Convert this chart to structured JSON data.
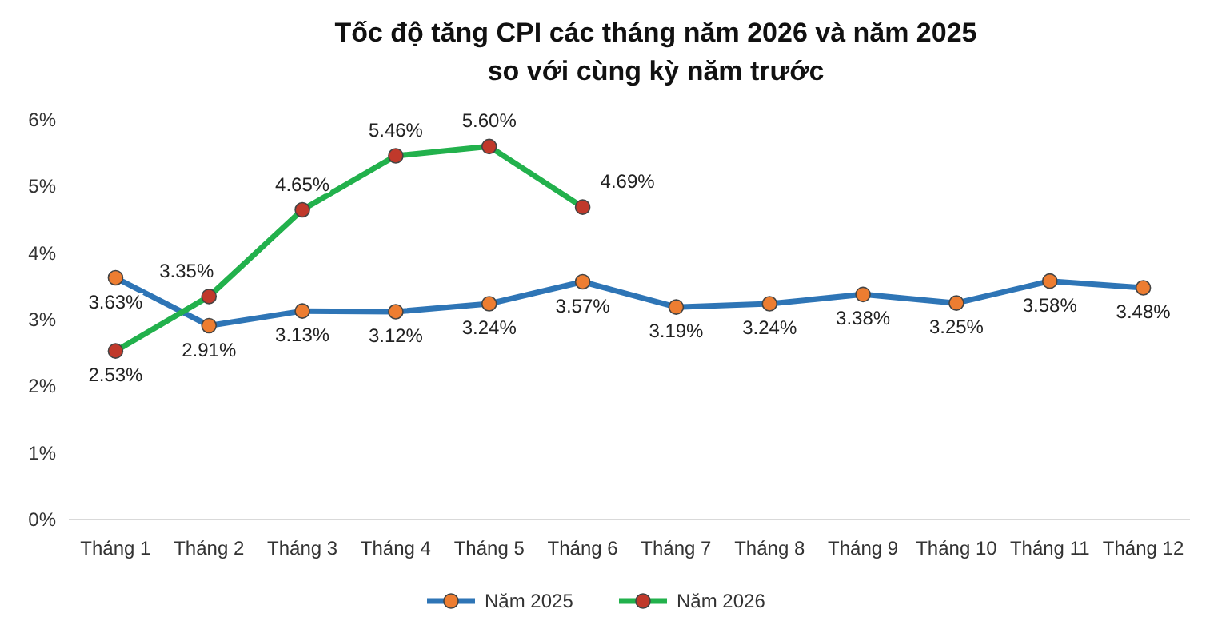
{
  "chart_data": {
    "type": "line",
    "title": "Tốc độ tăng CPI các tháng năm 2026 và năm 2025\nso với cùng kỳ năm trước",
    "categories": [
      "Tháng 1",
      "Tháng 2",
      "Tháng 3",
      "Tháng 4",
      "Tháng 5",
      "Tháng 6",
      "Tháng 7",
      "Tháng 8",
      "Tháng 9",
      "Tháng 10",
      "Tháng 11",
      "Tháng 12"
    ],
    "series": [
      {
        "name": "Năm 2025",
        "color": "#2e75b6",
        "values": [
          3.63,
          2.91,
          3.13,
          3.12,
          3.24,
          3.57,
          3.19,
          3.24,
          3.38,
          3.25,
          3.58,
          3.48
        ],
        "value_labels": [
          "3.63%",
          "2.91%",
          "3.13%",
          "3.12%",
          "3.24%",
          "3.57%",
          "3.19%",
          "3.24%",
          "3.38%",
          "3.25%",
          "3.58%",
          "3.48%"
        ]
      },
      {
        "name": "Năm 2026",
        "color": "#22b14c",
        "values": [
          2.53,
          3.35,
          4.65,
          5.46,
          5.6,
          4.69,
          null,
          null,
          null,
          null,
          null,
          null
        ],
        "value_labels": [
          "2.53%",
          "3.35%",
          "4.65%",
          "5.46%",
          "5.60%",
          "4.69%",
          null,
          null,
          null,
          null,
          null,
          null
        ]
      }
    ],
    "ylim": [
      0,
      6
    ],
    "yticks": [
      {
        "value": 0,
        "label": "0%"
      },
      {
        "value": 1,
        "label": "1%"
      },
      {
        "value": 2,
        "label": "2%"
      },
      {
        "value": 3,
        "label": "3%"
      },
      {
        "value": 4,
        "label": "4%"
      },
      {
        "value": 5,
        "label": "5%"
      },
      {
        "value": 6,
        "label": "6%"
      }
    ],
    "legend": "bottom",
    "marker": "circle",
    "line_style": "solid"
  }
}
